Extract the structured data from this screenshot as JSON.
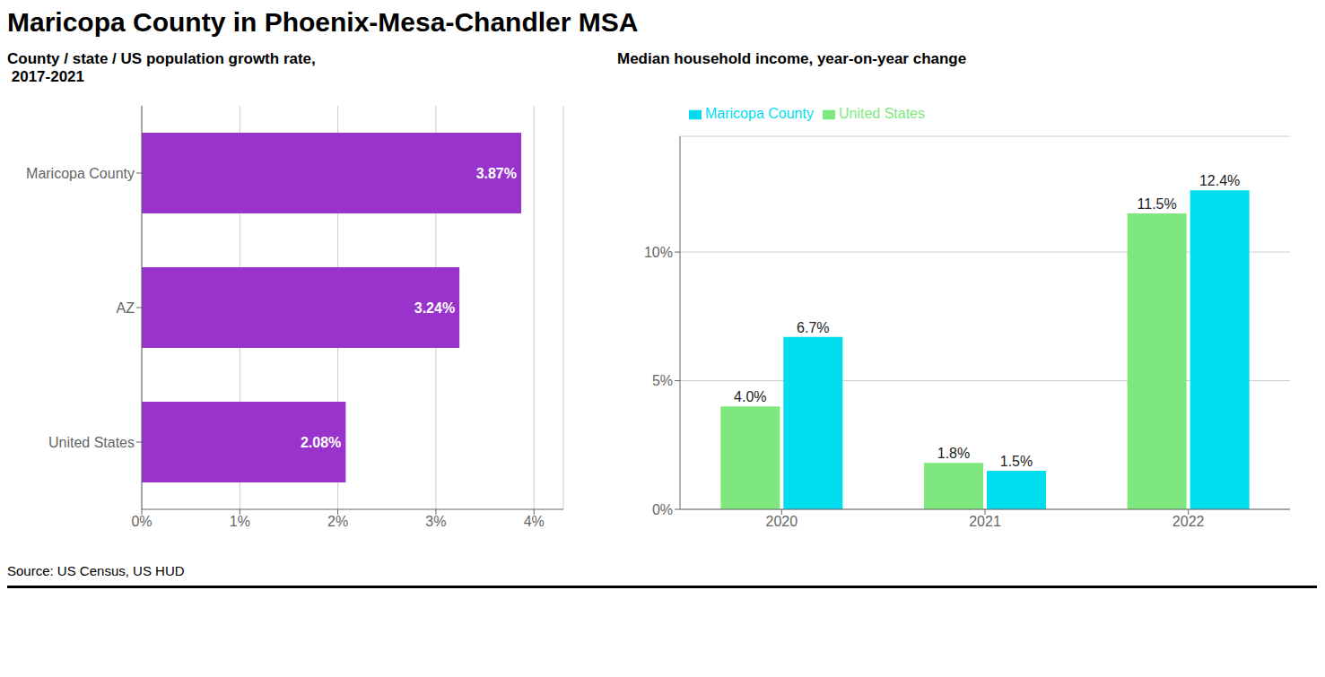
{
  "title": "Maricopa County in Phoenix-Mesa-Chandler MSA",
  "annotations": [
    "Source: US Census, US HUD"
  ],
  "chart_data": [
    {
      "type": "bar",
      "orientation": "horizontal",
      "title": "County / state / US population growth rate,\n 2017-2021",
      "categories": [
        "United States",
        "AZ",
        "Maricopa County"
      ],
      "values": [
        2.08,
        3.24,
        3.87
      ],
      "value_labels": [
        "2.08%",
        "3.24%",
        "3.87%"
      ],
      "data_labels": true,
      "color": "#9933CC",
      "xlim": [
        0,
        4.3
      ],
      "xticks": [
        {
          "value": 0,
          "label": "0%"
        },
        {
          "value": 1,
          "label": "1%"
        },
        {
          "value": 2,
          "label": "2%"
        },
        {
          "value": 3,
          "label": "3%"
        },
        {
          "value": 4,
          "label": "4%"
        }
      ],
      "grid": true
    },
    {
      "type": "bar",
      "title": "Median household income, year-on-year change",
      "categories": [
        "2020",
        "2021",
        "2022"
      ],
      "series": [
        {
          "name": "United States",
          "color": "#7EE87E",
          "values": [
            4.0,
            1.8,
            11.5
          ],
          "value_labels": [
            "4.0%",
            "1.8%",
            "11.5%"
          ]
        },
        {
          "name": "Maricopa County",
          "color": "#00DDEE",
          "values": [
            6.7,
            1.5,
            12.4
          ],
          "value_labels": [
            "6.7%",
            "1.5%",
            "12.4%"
          ]
        }
      ],
      "data_labels": true,
      "ylim": [
        0,
        14.5
      ],
      "yticks": [
        {
          "value": 0,
          "label": "0%"
        },
        {
          "value": 5,
          "label": "5%"
        },
        {
          "value": 10,
          "label": "10%"
        }
      ],
      "grid": true,
      "legend": "top"
    }
  ]
}
